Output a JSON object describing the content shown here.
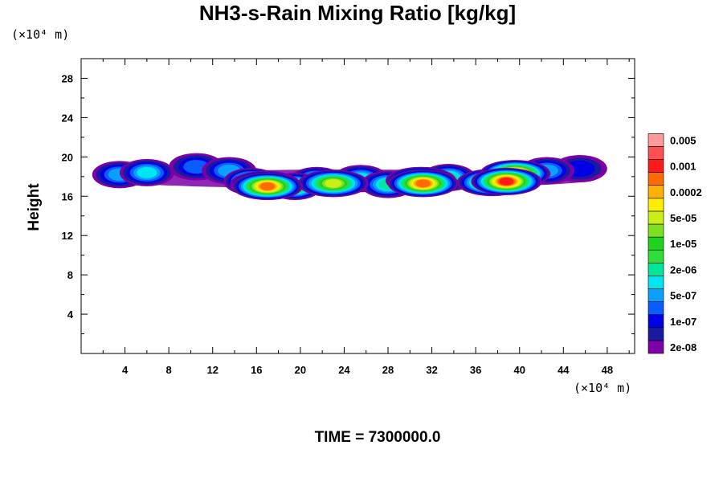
{
  "chart_data": {
    "type": "heatmap",
    "title": "NH3-s-Rain Mixing Ratio [kg/kg]",
    "ylabel": "Height",
    "x_unit": "(×10⁴ m)",
    "y_unit": "(×10⁴ m)",
    "xlim": [
      0,
      50.5
    ],
    "ylim": [
      0,
      30
    ],
    "x_ticks": [
      4,
      8,
      12,
      16,
      20,
      24,
      28,
      32,
      36,
      40,
      44,
      48
    ],
    "y_ticks": [
      4,
      8,
      12,
      16,
      20,
      24,
      28
    ],
    "time_label": "TIME = 7300000.0",
    "legend": {
      "levels": [
        {
          "color": "#7b00a8",
          "label": "2e-08"
        },
        {
          "color": "#1a1aa0",
          "label": ""
        },
        {
          "color": "#0000e6",
          "label": "1e-07"
        },
        {
          "color": "#0a5cff",
          "label": ""
        },
        {
          "color": "#0aa0ff",
          "label": "5e-07"
        },
        {
          "color": "#00e6f0",
          "label": ""
        },
        {
          "color": "#00e69a",
          "label": "2e-06"
        },
        {
          "color": "#2edc3a",
          "label": ""
        },
        {
          "color": "#1ed21e",
          "label": "1e-05"
        },
        {
          "color": "#7fe020",
          "label": ""
        },
        {
          "color": "#c8f018",
          "label": "5e-05"
        },
        {
          "color": "#ffee00",
          "label": ""
        },
        {
          "color": "#ffb000",
          "label": "0.0002"
        },
        {
          "color": "#ff6a00",
          "label": ""
        },
        {
          "color": "#ff1a1a",
          "label": "0.001"
        },
        {
          "color": "#ff5050",
          "label": ""
        },
        {
          "color": "#ff9a9a",
          "label": "0.005"
        }
      ]
    },
    "field": {
      "layer": {
        "x": [
          2.0,
          47.0
        ],
        "height_bottom": 16.0,
        "height_top": 19.5
      },
      "cells": [
        {
          "x": 3.5,
          "y": 18.2,
          "level": 4
        },
        {
          "x": 6.0,
          "y": 18.4,
          "level": 5
        },
        {
          "x": 10.5,
          "y": 19.0,
          "level": 3
        },
        {
          "x": 13.5,
          "y": 18.6,
          "level": 4
        },
        {
          "x": 15.5,
          "y": 17.5,
          "level": 8
        },
        {
          "x": 16.8,
          "y": 17.2,
          "level": 11
        },
        {
          "x": 17.0,
          "y": 17.0,
          "level": 13
        },
        {
          "x": 19.5,
          "y": 17.0,
          "level": 8
        },
        {
          "x": 21.5,
          "y": 17.6,
          "level": 7
        },
        {
          "x": 23.0,
          "y": 17.3,
          "level": 10
        },
        {
          "x": 25.5,
          "y": 17.8,
          "level": 5
        },
        {
          "x": 28.0,
          "y": 17.2,
          "level": 6
        },
        {
          "x": 31.0,
          "y": 17.6,
          "level": 10
        },
        {
          "x": 31.2,
          "y": 17.3,
          "level": 13
        },
        {
          "x": 33.5,
          "y": 17.9,
          "level": 6
        },
        {
          "x": 37.5,
          "y": 17.4,
          "level": 11
        },
        {
          "x": 38.8,
          "y": 17.5,
          "level": 14
        },
        {
          "x": 39.6,
          "y": 18.3,
          "level": 13
        },
        {
          "x": 42.5,
          "y": 18.6,
          "level": 4
        },
        {
          "x": 45.5,
          "y": 18.8,
          "level": 2
        }
      ]
    }
  }
}
